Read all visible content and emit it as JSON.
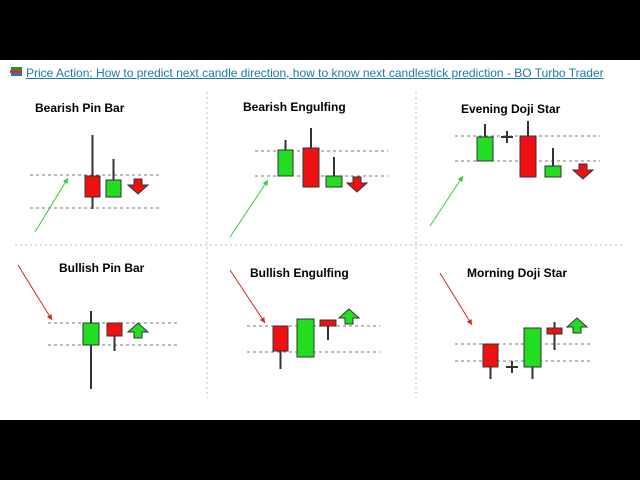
{
  "headline": {
    "icon": "books-icon",
    "text": "Price Action: How to predict next candle direction, how to know next candlestick prediction - BO Turbo Trader",
    "color": "#1a7aa6"
  },
  "colors": {
    "bull": "#22dd22",
    "bear": "#ee1111",
    "trend_up": "#33cc33",
    "trend_down": "#dd2222",
    "wick": "#333333",
    "guide": "#777777"
  },
  "panels": [
    {
      "id": "bearish-pin-bar",
      "title": "Bearish Pin Bar",
      "trend": "up",
      "arrow": "down",
      "candles": [
        {
          "dir": "bear",
          "body": "doji",
          "wick": "long-upper"
        },
        {
          "dir": "bull",
          "wick": "upper"
        }
      ]
    },
    {
      "id": "bearish-engulfing",
      "title": "Bearish Engulfing",
      "trend": "up",
      "arrow": "down",
      "candles": [
        {
          "dir": "bull"
        },
        {
          "dir": "bear"
        },
        {
          "dir": "bull",
          "size": "small"
        }
      ]
    },
    {
      "id": "evening-doji-star",
      "title": "Evening Doji Star",
      "trend": "up",
      "arrow": "down",
      "candles": [
        {
          "dir": "bull"
        },
        {
          "dir": "doji"
        },
        {
          "dir": "bear"
        },
        {
          "dir": "bull",
          "size": "small"
        }
      ]
    },
    {
      "id": "bullish-pin-bar",
      "title": "Bullish Pin Bar",
      "trend": "down",
      "arrow": "up",
      "candles": [
        {
          "dir": "bull",
          "wick": "long-lower"
        },
        {
          "dir": "bear",
          "size": "small"
        }
      ]
    },
    {
      "id": "bullish-engulfing",
      "title": "Bullish Engulfing",
      "trend": "down",
      "arrow": "up",
      "candles": [
        {
          "dir": "bear"
        },
        {
          "dir": "bull"
        },
        {
          "dir": "bear",
          "size": "small"
        }
      ]
    },
    {
      "id": "morning-doji-star",
      "title": "Morning Doji Star",
      "trend": "down",
      "arrow": "up",
      "candles": [
        {
          "dir": "bear"
        },
        {
          "dir": "doji"
        },
        {
          "dir": "bull"
        },
        {
          "dir": "bear",
          "size": "small"
        }
      ]
    }
  ]
}
